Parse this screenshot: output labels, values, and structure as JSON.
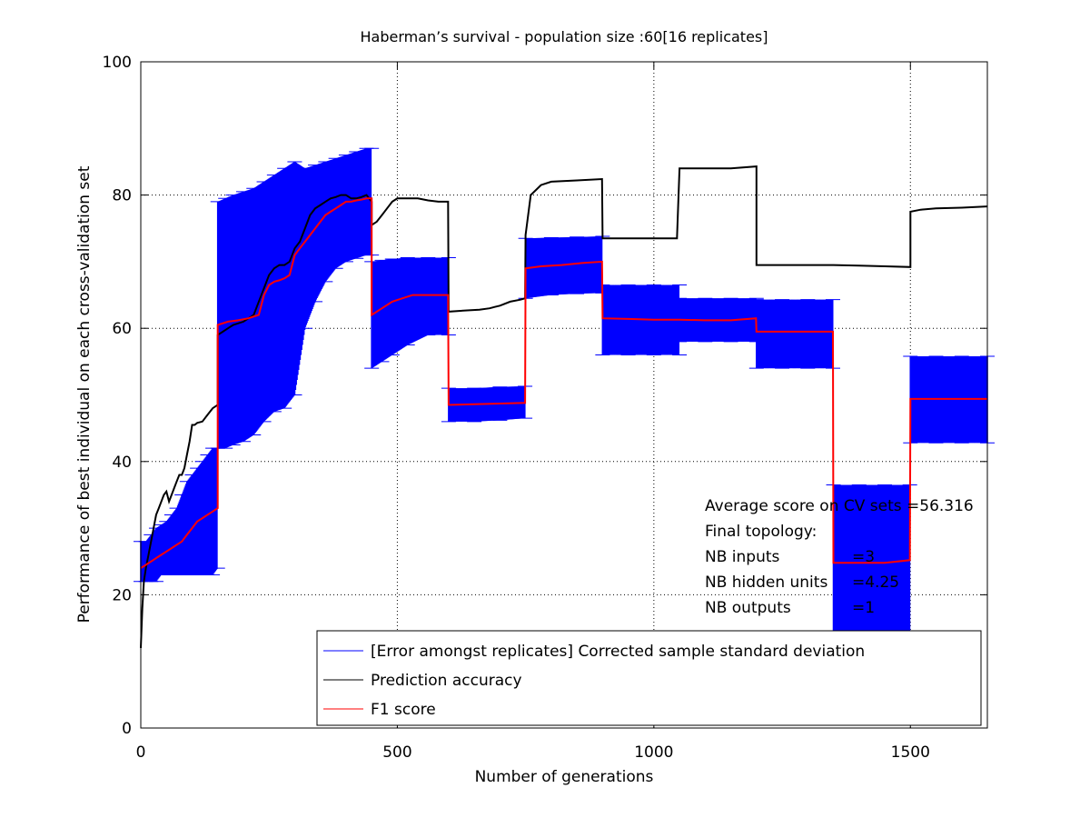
{
  "colors": {
    "error_band": "#0000ff",
    "accuracy": "#000000",
    "f1": "#ff0000",
    "grid": "#000000",
    "axes": "#000000",
    "background": "#ffffff"
  },
  "chart_data": {
    "type": "line",
    "title": "Haberman’s survival - population size :60[16 replicates]",
    "xlabel": "Number of generations",
    "ylabel": "Performance of best individual on each cross-validation set",
    "xlim": [
      0,
      1650
    ],
    "ylim": [
      0,
      100
    ],
    "xticks": [
      0,
      500,
      1000,
      1500
    ],
    "yticks": [
      0,
      20,
      40,
      60,
      80,
      100
    ],
    "grid": true,
    "legend_position": "bottom-right",
    "series": [
      {
        "name": "[Error amongst replicates] Corrected sample standard deviation",
        "kind": "error-band",
        "x": [
          0,
          10,
          20,
          30,
          40,
          50,
          60,
          70,
          80,
          90,
          100,
          110,
          120,
          130,
          140,
          150,
          150,
          165,
          180,
          200,
          220,
          240,
          260,
          280,
          300,
          300,
          320,
          340,
          360,
          380,
          400,
          420,
          440,
          450,
          450,
          470,
          490,
          520,
          560,
          600,
          600,
          650,
          700,
          749,
          750,
          800,
          850,
          900,
          900,
          950,
          1000,
          1050,
          1050,
          1100,
          1150,
          1200,
          1200,
          1250,
          1300,
          1349,
          1350,
          1400,
          1450,
          1499,
          1500,
          1550,
          1600,
          1650
        ],
        "low": [
          22,
          22,
          22,
          22,
          23,
          23,
          23,
          23,
          23,
          23,
          23,
          23,
          23,
          23,
          23,
          24,
          42,
          42,
          42.5,
          43,
          44,
          46,
          47.5,
          48,
          50,
          50,
          60,
          64,
          67,
          69,
          70,
          70.5,
          71,
          71,
          54,
          55,
          56,
          57.5,
          59,
          59,
          46,
          46,
          46.2,
          46.5,
          64.5,
          65,
          65.2,
          65.3,
          56,
          56,
          56,
          56,
          58,
          58,
          58,
          58,
          54,
          54,
          54,
          54,
          13,
          13,
          13,
          13,
          42.8,
          42.8,
          42.8,
          42.8
        ],
        "high": [
          28,
          28,
          29,
          30,
          30.5,
          31,
          32,
          33,
          35,
          37,
          38,
          39,
          40,
          41,
          42,
          42,
          79,
          79.5,
          80,
          80.5,
          81,
          82,
          83,
          84,
          85,
          85,
          84,
          84.5,
          85,
          85.5,
          86,
          86.5,
          87,
          87,
          70,
          70.2,
          70.4,
          70.6,
          70.6,
          70.6,
          51,
          51,
          51.2,
          51.3,
          73.5,
          73.6,
          73.7,
          73.8,
          66.5,
          66.5,
          66.5,
          66.5,
          64.5,
          64.5,
          64.5,
          64.5,
          64.3,
          64.3,
          64.3,
          64.3,
          36.5,
          36.5,
          36.5,
          36.5,
          55.8,
          55.8,
          55.8,
          55.8
        ]
      },
      {
        "name": "Prediction accuracy",
        "kind": "line",
        "x": [
          0,
          3,
          6,
          10,
          15,
          20,
          25,
          30,
          35,
          40,
          45,
          50,
          55,
          60,
          65,
          70,
          75,
          80,
          85,
          90,
          95,
          100,
          105,
          110,
          120,
          130,
          140,
          150,
          150,
          160,
          170,
          180,
          200,
          220,
          240,
          250,
          260,
          270,
          280,
          290,
          300,
          310,
          320,
          330,
          340,
          350,
          360,
          370,
          380,
          390,
          400,
          410,
          420,
          430,
          440,
          450,
          450,
          460,
          470,
          480,
          490,
          500,
          520,
          540,
          560,
          580,
          599,
          600,
          620,
          640,
          660,
          680,
          690,
          700,
          720,
          740,
          749,
          750,
          760,
          780,
          800,
          850,
          899,
          900,
          950,
          1000,
          1045,
          1050,
          1100,
          1150,
          1200,
          1200,
          1250,
          1300,
          1350,
          1400,
          1450,
          1500,
          1500,
          1520,
          1550,
          1600,
          1650
        ],
        "y": [
          12,
          18,
          22,
          24,
          26,
          28,
          30,
          32,
          33,
          34,
          35,
          35.5,
          34,
          35,
          36,
          37,
          38,
          38,
          39,
          41,
          43,
          45.5,
          45.5,
          45.8,
          46,
          47,
          48,
          48.5,
          59,
          59.5,
          60,
          60.5,
          61,
          62,
          66,
          68,
          69,
          69.5,
          69.5,
          70,
          72,
          73,
          75,
          77,
          78,
          78.5,
          79,
          79.5,
          79.7,
          80,
          80,
          79.5,
          79.5,
          79.7,
          80,
          79,
          75.5,
          76,
          77,
          78,
          79,
          79.5,
          79.5,
          79.5,
          79.2,
          79,
          79,
          62.5,
          62.6,
          62.7,
          62.8,
          63,
          63.2,
          63.4,
          64,
          64.3,
          64.5,
          74,
          80,
          81.5,
          82,
          82.2,
          82.4,
          73.5,
          73.5,
          73.5,
          73.5,
          84,
          84,
          84,
          84.3,
          69.5,
          69.5,
          69.5,
          69.5,
          69.4,
          69.3,
          69.2,
          77.5,
          77.8,
          78,
          78.1,
          78.3
        ]
      },
      {
        "name": "F1 score",
        "kind": "line",
        "x": [
          0,
          10,
          20,
          30,
          40,
          50,
          60,
          70,
          80,
          90,
          100,
          110,
          120,
          130,
          140,
          150,
          150,
          170,
          190,
          210,
          230,
          240,
          250,
          260,
          270,
          280,
          290,
          300,
          310,
          320,
          330,
          340,
          350,
          360,
          370,
          380,
          390,
          400,
          410,
          420,
          430,
          440,
          450,
          450,
          470,
          490,
          510,
          530,
          560,
          599,
          600,
          650,
          700,
          749,
          750,
          780,
          820,
          860,
          899,
          900,
          950,
          1000,
          1050,
          1100,
          1150,
          1199,
          1200,
          1250,
          1300,
          1349,
          1350,
          1400,
          1450,
          1499,
          1500,
          1550,
          1600,
          1650
        ],
        "y": [
          24,
          24.5,
          25,
          25.5,
          26,
          26.5,
          27,
          27.5,
          28,
          29,
          30,
          31,
          31.5,
          32,
          32.5,
          33,
          60.5,
          61,
          61.2,
          61.5,
          62,
          65,
          66.5,
          67,
          67.2,
          67.5,
          68,
          71,
          72,
          73,
          74,
          75,
          76,
          77,
          77.5,
          78,
          78.5,
          79,
          79,
          79.2,
          79.3,
          79.5,
          79.5,
          62,
          63,
          64,
          64.5,
          65,
          65,
          65,
          48.5,
          48.6,
          48.7,
          48.8,
          69,
          69.3,
          69.5,
          69.8,
          70,
          61.5,
          61.4,
          61.3,
          61.3,
          61.2,
          61.2,
          61.5,
          59.5,
          59.5,
          59.5,
          59.5,
          24.8,
          24.8,
          24.8,
          25.2,
          49.4,
          49.4,
          49.4,
          49.4
        ]
      }
    ],
    "annotations": [
      {
        "label": "Average score on CV sets =56.316"
      },
      {
        "label": "Final topology:"
      },
      {
        "label": "NB inputs",
        "value": "=3"
      },
      {
        "label": "NB hidden units",
        "value": "=4.25"
      },
      {
        "label": "NB outputs",
        "value": "=1"
      }
    ]
  }
}
